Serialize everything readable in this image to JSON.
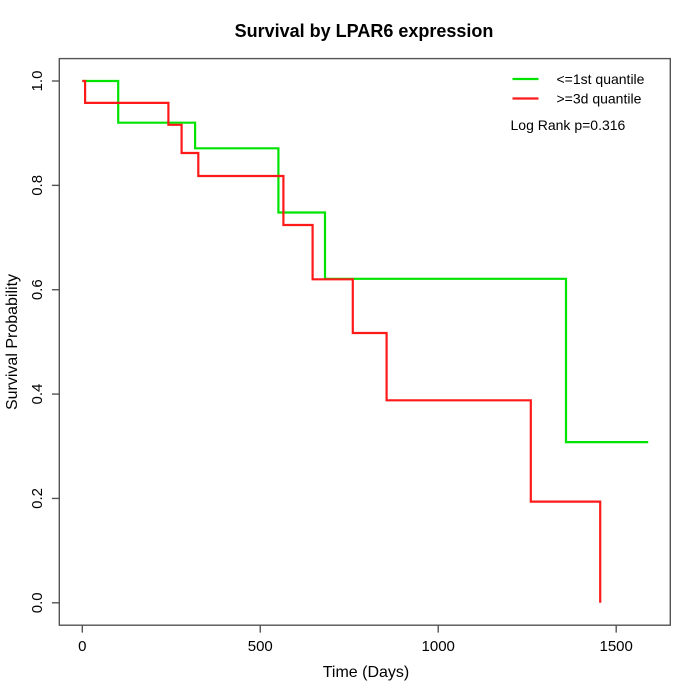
{
  "chart_data": {
    "type": "line",
    "subtype": "kaplan-meier-step-curves",
    "title": "Survival by LPAR6 expression",
    "xlabel": "Time (Days)",
    "ylabel": "Survival Probability",
    "xlim": [
      0,
      1600
    ],
    "ylim": [
      0.0,
      1.0
    ],
    "grid": false,
    "x_ticks": [
      0,
      500,
      1000,
      1500
    ],
    "x_tick_labels": [
      "0",
      "500",
      "1000",
      "1500"
    ],
    "y_ticks": [
      1.0,
      0.8,
      0.6,
      0.4,
      0.2,
      0.0
    ],
    "y_tick_labels": [
      "1.0",
      "0.8",
      "0.6",
      "0.4",
      "0.2",
      "0.0"
    ],
    "legend_position": "top-right",
    "annotation": "Log Rank p=0.316",
    "series": [
      {
        "name": "<=1st quantile",
        "color": "#00e300",
        "start": {
          "time": 0,
          "survival": 1.0
        },
        "steps": [
          {
            "time": 101,
            "survival": 0.92
          },
          {
            "time": 317,
            "survival": 0.871
          },
          {
            "time": 551,
            "survival": 0.748
          },
          {
            "time": 682,
            "survival": 0.621
          },
          {
            "time": 1359,
            "survival": 0.308
          }
        ],
        "end_time": 1590
      },
      {
        "name": ">=3d quantile",
        "color": "#ff1a1a",
        "start": {
          "time": 0,
          "survival": 1.0
        },
        "steps": [
          {
            "time": 8,
            "survival": 0.958
          },
          {
            "time": 242,
            "survival": 0.916
          },
          {
            "time": 279,
            "survival": 0.862
          },
          {
            "time": 326,
            "survival": 0.818
          },
          {
            "time": 565,
            "survival": 0.724
          },
          {
            "time": 647,
            "survival": 0.62
          },
          {
            "time": 760,
            "survival": 0.517
          },
          {
            "time": 855,
            "survival": 0.388
          },
          {
            "time": 1260,
            "survival": 0.194
          },
          {
            "time": 1455,
            "survival": 0.0
          }
        ],
        "end_time": 1455
      }
    ],
    "axis_color": "#545454"
  }
}
